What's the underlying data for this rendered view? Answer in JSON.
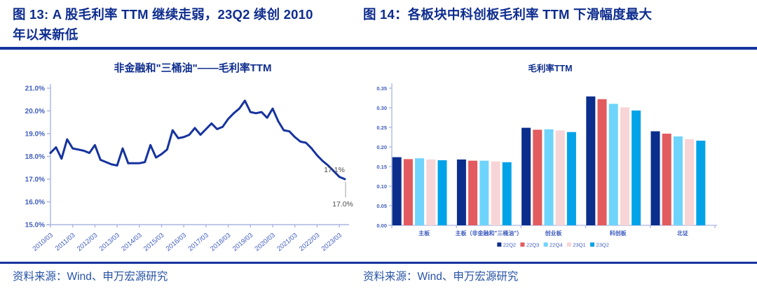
{
  "header": {
    "left_title_lines": [
      "图 13: A 股毛利率 TTM 继续走弱，23Q2 续创 2010",
      "年以来新低"
    ],
    "right_title": "图 14：各板块中科创板毛利率 TTM 下滑幅度最大"
  },
  "footer": {
    "left_source": "资料来源：Wind、申万宏源研究",
    "right_source": "资料来源：Wind、申万宏源研究"
  },
  "colors": {
    "title_navy": "#0e2d8e",
    "rule_navy": "#16339e",
    "source_blue": "#2653a6",
    "axis_label_blue": "#3f5dbd",
    "axis_line_blue": "#a9b6e2",
    "line_navy": "#16339e",
    "annotation_gray": "#4d4d4d",
    "leader_gray": "#bfbfbf"
  },
  "chart_data": [
    {
      "type": "line",
      "title": "非金融和\"三桶油\"——毛利率TTM",
      "x_start": "2010/03",
      "x_frequency": "quarterly",
      "x_tick_labels": [
        "2010/03",
        "2011/03",
        "2012/03",
        "2013/03",
        "2014/03",
        "2015/03",
        "2016/03",
        "2017/03",
        "2018/03",
        "2019/03",
        "2020/03",
        "2021/03",
        "2022/03",
        "2023/03"
      ],
      "values": [
        18.15,
        18.4,
        17.9,
        18.75,
        18.35,
        18.3,
        18.25,
        18.15,
        18.5,
        17.85,
        17.75,
        17.65,
        17.6,
        18.35,
        17.7,
        17.7,
        17.7,
        17.75,
        18.5,
        17.95,
        18.1,
        18.3,
        19.15,
        18.8,
        18.85,
        18.95,
        19.25,
        18.95,
        19.2,
        19.45,
        19.2,
        19.3,
        19.65,
        19.9,
        20.1,
        20.45,
        19.95,
        19.9,
        19.95,
        19.7,
        20.1,
        19.55,
        19.15,
        19.1,
        18.85,
        18.65,
        18.6,
        18.35,
        18.05,
        17.8,
        17.6,
        17.35,
        17.1,
        17.0
      ],
      "unit": "%",
      "ylim": [
        15.0,
        21.0
      ],
      "y_tick_labels": [
        "21.0%",
        "20.0%",
        "19.0%",
        "18.0%",
        "17.0%",
        "16.0%",
        "15.0%"
      ],
      "annotations": [
        {
          "text": "17.1%",
          "point_index": 52
        },
        {
          "text": "17.0%",
          "point_index": 53,
          "leader_line": true
        }
      ],
      "grid": false,
      "legend": "none",
      "line_color": "#16339e"
    },
    {
      "type": "bar",
      "title": "毛利率TTM",
      "categories": [
        "主板",
        "主板（非金融和\"三桶油\"）",
        "创业板",
        "科创板",
        "北证"
      ],
      "series": [
        {
          "name": "22Q2",
          "color": "#0b2e8d",
          "values": [
            0.174,
            0.168,
            0.249,
            0.329,
            0.24
          ]
        },
        {
          "name": "22Q3",
          "color": "#e25b5e",
          "values": [
            0.169,
            0.165,
            0.244,
            0.322,
            0.234
          ]
        },
        {
          "name": "22Q4",
          "color": "#6fd4fb",
          "values": [
            0.171,
            0.165,
            0.245,
            0.31,
            0.227
          ]
        },
        {
          "name": "23Q1",
          "color": "#f7d4d6",
          "values": [
            0.168,
            0.163,
            0.242,
            0.301,
            0.22
          ]
        },
        {
          "name": "23Q2",
          "color": "#00a3e8",
          "values": [
            0.166,
            0.161,
            0.238,
            0.293,
            0.216
          ]
        }
      ],
      "ylim": [
        0,
        0.35
      ],
      "y_tick_labels": [
        "0.35",
        "0.30",
        "0.25",
        "0.20",
        "0.15",
        "0.10",
        "0.05",
        "0.00"
      ],
      "legend_position": "bottom",
      "grid": false
    }
  ]
}
